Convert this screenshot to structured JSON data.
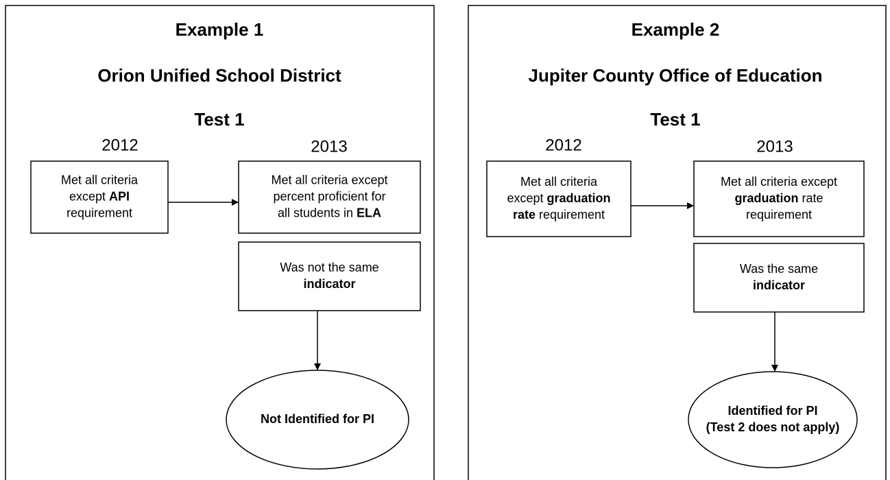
{
  "examples": [
    {
      "title": "Example 1",
      "organization": "Orion Unified School District",
      "test": "Test 1",
      "years": [
        "2012",
        "2013"
      ],
      "boxes": [
        {
          "lines": [
            [
              {
                "text": "Met all criteria"
              }
            ],
            [
              {
                "text": "except "
              },
              {
                "text": "API",
                "bold": true
              }
            ],
            [
              {
                "text": "requirement"
              }
            ]
          ]
        },
        {
          "lines": [
            [
              {
                "text": "Met all criteria except"
              }
            ],
            [
              {
                "text": "percent proficient for"
              }
            ],
            [
              {
                "text": "all students in "
              },
              {
                "text": "ELA",
                "bold": true
              }
            ]
          ]
        },
        {
          "lines": [
            [
              {
                "text": "Was not the same"
              }
            ],
            [
              {
                "text": "indicator",
                "bold": true
              }
            ]
          ]
        }
      ],
      "outcome": {
        "lines": [
          [
            {
              "text": "Not Identified for PI",
              "bold": true
            }
          ]
        ]
      }
    },
    {
      "title": "Example 2",
      "organization": "Jupiter County Office of Education",
      "test": "Test 1",
      "years": [
        "2012",
        "2013"
      ],
      "boxes": [
        {
          "lines": [
            [
              {
                "text": "Met all criteria"
              }
            ],
            [
              {
                "text": "except "
              },
              {
                "text": "graduation",
                "bold": true
              }
            ],
            [
              {
                "text": "rate",
                "bold": true
              },
              {
                "text": " requirement"
              }
            ]
          ]
        },
        {
          "lines": [
            [
              {
                "text": "Met all criteria except"
              }
            ],
            [
              {
                "text": "graduation",
                "bold": true
              },
              {
                "text": " rate"
              }
            ],
            [
              {
                "text": "requirement"
              }
            ]
          ]
        },
        {
          "lines": [
            [
              {
                "text": "Was the same"
              }
            ],
            [
              {
                "text": "indicator",
                "bold": true
              }
            ]
          ]
        }
      ],
      "outcome": {
        "lines": [
          [
            {
              "text": "Identified for PI",
              "bold": true
            }
          ],
          [
            {
              "text": "(Test 2 does not apply)",
              "bold": true
            }
          ]
        ]
      }
    }
  ]
}
